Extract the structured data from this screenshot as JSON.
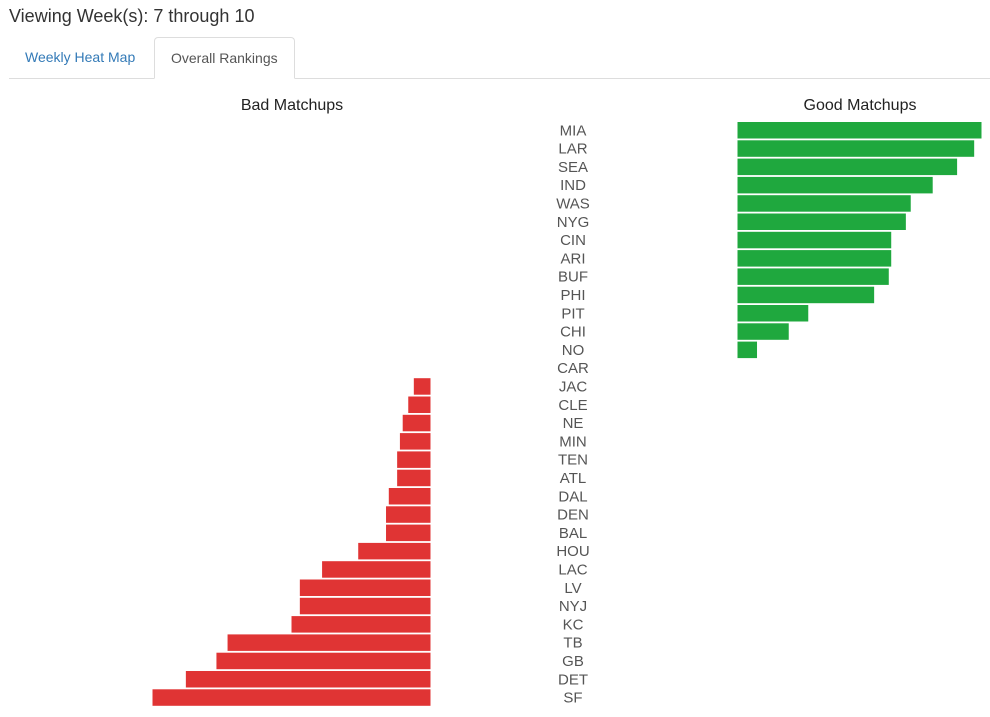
{
  "header": {
    "title": "Viewing Week(s): 7 through 10"
  },
  "tabs": [
    {
      "label": "Weekly Heat Map",
      "active": false
    },
    {
      "label": "Overall Rankings",
      "active": true
    }
  ],
  "colors": {
    "good": "#1fa83e",
    "bad": "#e03434",
    "tab_link": "#337ab7"
  },
  "chart_data": {
    "type": "bar",
    "orientation": "horizontal-diverging",
    "bad_title": "Bad Matchups",
    "good_title": "Good Matchups",
    "teams": [
      "MIA",
      "LAR",
      "SEA",
      "IND",
      "WAS",
      "NYG",
      "CIN",
      "ARI",
      "BUF",
      "PHI",
      "PIT",
      "CHI",
      "NO",
      "CAR",
      "JAC",
      "CLE",
      "NE",
      "MIN",
      "TEN",
      "ATL",
      "DAL",
      "DEN",
      "BAL",
      "HOU",
      "LAC",
      "LV",
      "NYJ",
      "KC",
      "TB",
      "GB",
      "DET",
      "SF"
    ],
    "series": [
      {
        "name": "Good Matchups",
        "values": [
          100,
          97,
          90,
          80,
          71,
          69,
          63,
          63,
          62,
          56,
          29,
          21,
          8,
          0,
          0,
          0,
          0,
          0,
          0,
          0,
          0,
          0,
          0,
          0,
          0,
          0,
          0,
          0,
          0,
          0,
          0,
          0
        ]
      },
      {
        "name": "Bad Matchups",
        "values": [
          0,
          0,
          0,
          0,
          0,
          0,
          0,
          0,
          0,
          0,
          0,
          0,
          0,
          0,
          6,
          8,
          10,
          11,
          12,
          12,
          15,
          16,
          16,
          26,
          39,
          47,
          47,
          50,
          73,
          77,
          88,
          100
        ]
      }
    ],
    "xlim": [
      0,
      100
    ]
  }
}
